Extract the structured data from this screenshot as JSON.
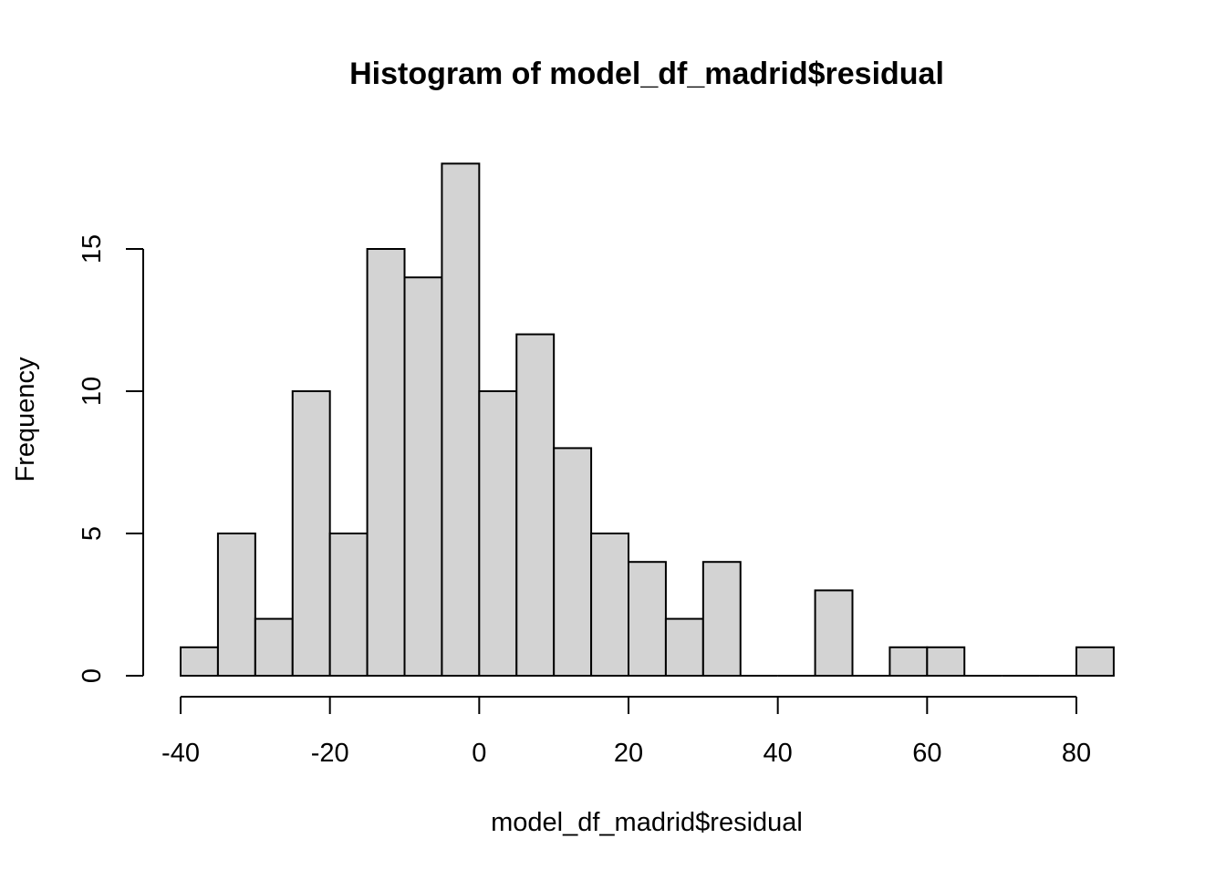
{
  "chart_data": {
    "type": "bar",
    "title": "Histogram of model_df_madrid$residual",
    "xlabel": "model_df_madrid$residual",
    "ylabel": "Frequency",
    "bin_edges": [
      -40,
      -35,
      -30,
      -25,
      -20,
      -15,
      -10,
      -5,
      0,
      5,
      10,
      15,
      20,
      25,
      30,
      35,
      40,
      45,
      50,
      55,
      60,
      65,
      70,
      75,
      80,
      85
    ],
    "values": [
      1,
      5,
      2,
      10,
      5,
      15,
      14,
      18,
      10,
      12,
      8,
      5,
      4,
      2,
      4,
      0,
      0,
      3,
      0,
      1,
      1,
      0,
      0,
      0,
      1
    ],
    "xlim": [
      -40,
      85
    ],
    "ylim": [
      0,
      18
    ],
    "x_ticks": [
      -40,
      -20,
      0,
      20,
      40,
      60,
      80
    ],
    "y_ticks": [
      0,
      5,
      10,
      15
    ],
    "grid": false,
    "legend": "none",
    "colors": {
      "bar_fill": "#d3d3d3",
      "bar_stroke": "#000000"
    }
  }
}
